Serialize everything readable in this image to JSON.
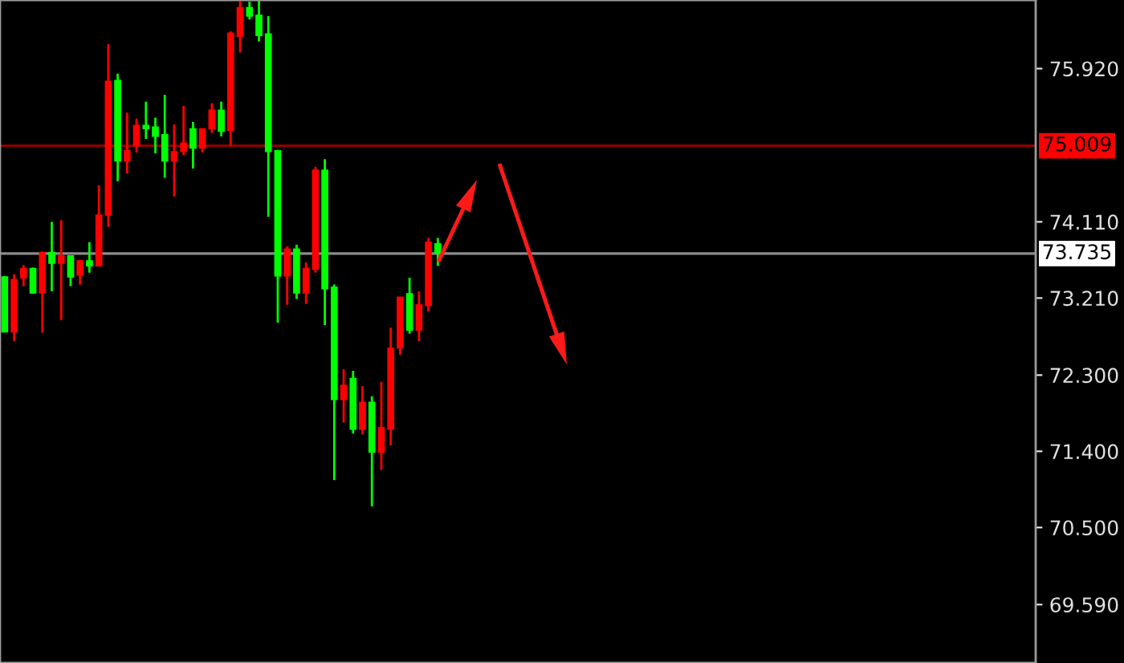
{
  "chart_data": {
    "type": "candlestick",
    "categories": [
      null,
      null,
      null,
      null,
      null,
      null,
      null,
      null,
      null,
      null,
      null,
      null,
      null,
      null,
      null,
      null,
      null,
      null,
      null,
      null,
      null,
      null,
      null,
      null,
      null,
      null,
      null,
      null,
      null,
      null,
      null,
      null,
      null,
      null,
      null,
      null,
      null,
      null,
      null,
      null,
      null,
      null,
      null,
      null,
      null,
      null,
      null,
      null,
      null,
      null,
      null,
      null,
      null,
      null,
      null,
      null,
      null,
      null,
      null,
      null,
      null,
      null,
      null,
      null,
      null,
      null,
      null,
      null,
      null,
      null,
      null,
      null,
      null,
      null,
      null,
      null,
      null,
      null,
      null,
      null,
      null,
      null,
      null,
      null,
      null,
      null,
      null,
      null,
      null,
      null,
      null,
      null,
      null,
      null,
      null,
      null,
      null,
      null,
      null,
      null,
      null,
      null,
      null,
      null,
      null,
      null,
      null,
      null,
      null,
      null
    ],
    "ohlc": [
      [
        73.46,
        73.47,
        72.81,
        72.81
      ],
      [
        72.81,
        73.49,
        72.7,
        73.43
      ],
      [
        73.45,
        73.6,
        73.35,
        73.56
      ],
      [
        73.56,
        73.57,
        73.26,
        73.27
      ],
      [
        73.27,
        73.76,
        72.8,
        73.75
      ],
      [
        73.75,
        74.11,
        73.29,
        73.62
      ],
      [
        73.62,
        74.13,
        72.95,
        73.71
      ],
      [
        73.71,
        73.71,
        73.35,
        73.46
      ],
      [
        73.48,
        73.66,
        73.37,
        73.65
      ],
      [
        73.65,
        73.87,
        73.51,
        73.59
      ],
      [
        73.59,
        74.54,
        73.59,
        74.19
      ],
      [
        74.19,
        76.21,
        74.05,
        75.77
      ],
      [
        75.78,
        75.86,
        74.59,
        74.83
      ],
      [
        74.83,
        75.4,
        74.68,
        74.95
      ],
      [
        75.01,
        75.33,
        74.93,
        75.25
      ],
      [
        75.25,
        75.53,
        75.09,
        75.21
      ],
      [
        75.23,
        75.34,
        74.92,
        75.12
      ],
      [
        75.14,
        75.61,
        74.63,
        74.83
      ],
      [
        74.83,
        75.26,
        74.41,
        74.94
      ],
      [
        74.94,
        75.48,
        74.9,
        75.04
      ],
      [
        75.21,
        75.29,
        74.74,
        74.98
      ],
      [
        74.98,
        75.21,
        74.93,
        75.21
      ],
      [
        75.21,
        75.51,
        75.16,
        75.43
      ],
      [
        75.43,
        75.53,
        75.12,
        75.18
      ],
      [
        75.19,
        76.36,
        75.01,
        76.34
      ],
      [
        76.3,
        76.72,
        76.11,
        76.64
      ],
      [
        76.64,
        76.71,
        76.5,
        76.54
      ],
      [
        76.55,
        76.72,
        76.24,
        76.31
      ],
      [
        76.33,
        76.54,
        74.17,
        74.94
      ],
      [
        74.95,
        74.96,
        72.92,
        73.47
      ],
      [
        73.47,
        73.82,
        73.13,
        73.79
      ],
      [
        73.79,
        73.84,
        73.2,
        73.27
      ],
      [
        73.27,
        73.63,
        73.14,
        73.56
      ],
      [
        73.55,
        74.76,
        73.51,
        74.72
      ],
      [
        74.72,
        74.85,
        72.89,
        73.32
      ],
      [
        73.34,
        73.37,
        71.06,
        72.01
      ],
      [
        72.01,
        72.37,
        71.74,
        72.18
      ],
      [
        72.26,
        72.35,
        71.61,
        71.66
      ],
      [
        71.66,
        72.17,
        71.6,
        71.98
      ],
      [
        71.98,
        72.05,
        70.75,
        71.39
      ],
      [
        71.39,
        72.22,
        71.18,
        71.68
      ],
      [
        71.66,
        72.86,
        71.47,
        72.62
      ],
      [
        72.62,
        73.22,
        72.54,
        73.22
      ],
      [
        73.26,
        73.45,
        72.79,
        72.83
      ],
      [
        72.83,
        73.29,
        72.7,
        73.13
      ],
      [
        73.12,
        73.92,
        73.05,
        73.87
      ],
      [
        73.85,
        73.92,
        73.59,
        73.74
      ],
      null,
      null,
      null,
      null,
      null,
      null,
      null,
      null,
      null,
      null,
      null,
      null,
      null,
      null,
      null,
      null,
      null,
      null,
      null,
      null,
      null,
      null,
      null,
      null,
      null,
      null,
      null,
      null,
      null,
      null,
      null,
      null,
      null,
      null,
      null,
      null,
      null,
      null,
      null,
      null,
      null,
      null,
      null,
      null,
      null,
      null,
      null,
      null,
      null,
      null,
      null,
      null,
      null,
      null,
      null,
      null,
      null,
      null,
      null,
      null,
      null,
      null,
      null
    ],
    "colors": [
      "#00ff00",
      "#ff0000",
      "#ff0000",
      "#00ff00",
      "#ff0000",
      "#00ff00",
      "#ff0000",
      "#00ff00",
      "#ff0000",
      "#00ff00",
      "#ff0000",
      "#ff0000",
      "#00ff00",
      "#ff0000",
      "#ff0000",
      "#00ff00",
      "#00ff00",
      "#00ff00",
      "#ff0000",
      "#ff0000",
      "#00ff00",
      "#ff0000",
      "#ff0000",
      "#00ff00",
      "#ff0000",
      "#ff0000",
      "#00ff00",
      "#00ff00",
      "#00ff00",
      "#00ff00",
      "#ff0000",
      "#00ff00",
      "#ff0000",
      "#ff0000",
      "#00ff00",
      "#00ff00",
      "#ff0000",
      "#00ff00",
      "#ff0000",
      "#00ff00",
      "#ff0000",
      "#ff0000",
      "#ff0000",
      "#00ff00",
      "#ff0000",
      "#ff0000",
      "#00ff00",
      null,
      null,
      null,
      null,
      null,
      null,
      null,
      null,
      null,
      null,
      null,
      null,
      null,
      null,
      null,
      null,
      null,
      null,
      null,
      null,
      null,
      null,
      null,
      null,
      null,
      null,
      null,
      null,
      null,
      null,
      null,
      null,
      null,
      null,
      null,
      null,
      null,
      null,
      null,
      null,
      null,
      null,
      null,
      null,
      null,
      null,
      null,
      null,
      null,
      null,
      null,
      null,
      null,
      null,
      null,
      null,
      null,
      null,
      null,
      null,
      null,
      null,
      null
    ],
    "ylim": [
      68.9,
      76.73
    ],
    "yticks": [
      {
        "value": 75.92,
        "label": "75.920"
      },
      {
        "value": 74.11,
        "label": "74.110"
      },
      {
        "value": 73.21,
        "label": "73.210"
      },
      {
        "value": 72.3,
        "label": "72.300"
      },
      {
        "value": 71.4,
        "label": "71.400"
      },
      {
        "value": 70.5,
        "label": "70.500"
      },
      {
        "value": 69.59,
        "label": "69.590"
      }
    ],
    "ref_lines": [
      {
        "axis": "y",
        "value": 75.009,
        "label": "75.009",
        "color": "#ff0000"
      },
      {
        "axis": "y",
        "value": 73.735,
        "label": "73.735",
        "color": "#ffffff"
      }
    ],
    "tick_labels": "y",
    "grid": false
  }
}
